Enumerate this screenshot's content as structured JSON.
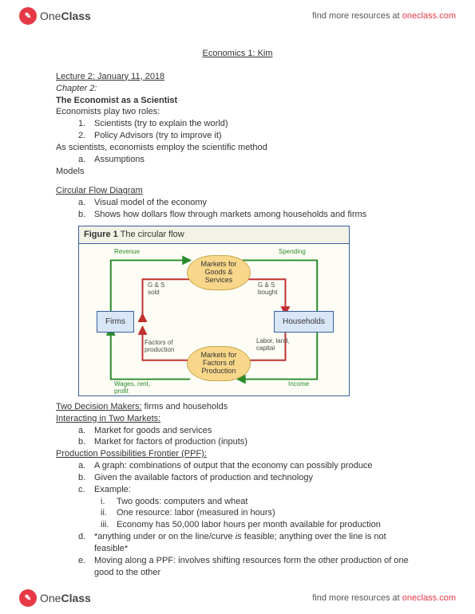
{
  "brand": {
    "logo_glyph": "✎",
    "name_part1": "One",
    "name_part2": "Class",
    "tagline_prefix": "find more resources at ",
    "tagline_link": "oneclass.com"
  },
  "doc": {
    "title": "Economics 1: Kim",
    "lecture_heading": "Lecture 2: January 11, 2018",
    "chapter": "Chapter 2:",
    "section_title": "The Economist as a Scientist",
    "roles_intro": "Economists play two roles:",
    "role1": "Scientists (try to explain the world)",
    "role2": "Policy Advisors (try to improve it)",
    "as_scientists": "As scientists, economists employ the scientific method",
    "assumptions": "Assumptions",
    "models": "Models",
    "cfd_heading": "Circular Flow Diagram",
    "cfd_a": "Visual model of the economy",
    "cfd_b": "Shows how dollars flow through markets among households and firms",
    "two_decision": "Two Decision Makers:",
    "two_decision_rest": " firms and households",
    "interacting": "Interacting in Two Markets:",
    "interact_a": "Market for goods and services",
    "interact_b": "Market for factors of production (inputs)",
    "ppf_heading": "Production Possibilities Frontier (PPF):",
    "ppf_a": "A graph: combinations of output that the economy can possibly produce",
    "ppf_b": "Given the available factors of production and technology",
    "ppf_c": "Example:",
    "ppf_c_i": "Two goods: computers and wheat",
    "ppf_c_ii": "One resource: labor (measured in hours)",
    "ppf_c_iii": "Economy has 50,000 labor hours per month available for production",
    "ppf_d_pre": "*anything under or on the line/curve ",
    "ppf_d_is": "is",
    "ppf_d_post": " feasible; anything over the line is not feasible*",
    "ppf_e": "Moving along a PPF: involves shifting resources form the other production of one good to the other"
  },
  "diagram": {
    "figure_label": "Figure 1",
    "figure_caption": "The circular flow",
    "nodes": {
      "top_market": "Markets for\nGoods &\nServices",
      "bottom_market": "Markets for\nFactors of\nProduction",
      "firms": "Firms",
      "households": "Households"
    },
    "labels": {
      "revenue": "Revenue",
      "spending": "Spending",
      "gs_sold": "G & S\nsold",
      "gs_bought": "G & S\nbought",
      "factors": "Factors of\nproduction",
      "labor": "Labor, land,\ncapital",
      "wages": "Wages, rent,\nprofit",
      "income": "Income"
    },
    "colors": {
      "green": "#2a8a2a",
      "red": "#c03030",
      "node_fill": "#f8d78a",
      "node_border": "#c9a94e",
      "box_fill": "#d9e6f7",
      "box_border": "#3a5fa0",
      "bg": "#fdfdf5"
    }
  }
}
